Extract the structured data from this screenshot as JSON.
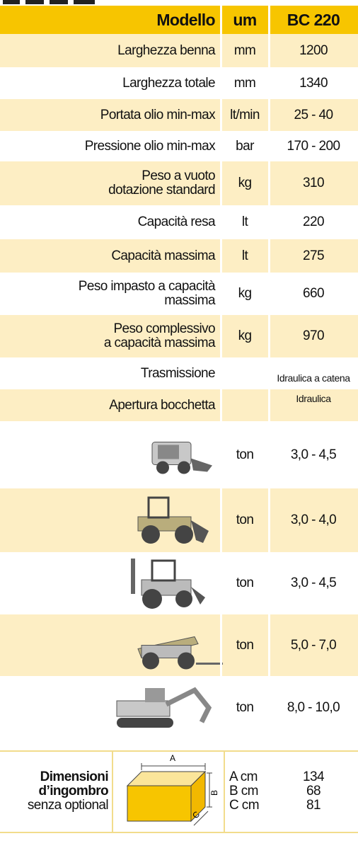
{
  "table": {
    "header": [
      "Modello",
      "um",
      "BC 220"
    ],
    "rows": [
      {
        "label": [
          "Larghezza benna"
        ],
        "unit": "mm",
        "value": "1200"
      },
      {
        "label": [
          "Larghezza totale"
        ],
        "unit": "mm",
        "value": "1340"
      },
      {
        "label": [
          "Portata olio min-max"
        ],
        "unit": "lt/min",
        "value": "25 - 40"
      },
      {
        "label": [
          "Pressione olio min-max"
        ],
        "unit": "bar",
        "value": "170 - 200"
      },
      {
        "label": [
          "Peso a vuoto",
          "dotazione standard"
        ],
        "unit": "kg",
        "value": "310"
      },
      {
        "label": [
          "Capacità resa"
        ],
        "unit": "lt",
        "value": "220"
      },
      {
        "label": [
          "Capacità massima"
        ],
        "unit": "lt",
        "value": "275"
      },
      {
        "label": [
          "Peso impasto a capacità",
          "massima"
        ],
        "unit": "kg",
        "value": "660"
      },
      {
        "label": [
          "Peso complessivo",
          "a capacità massima"
        ],
        "unit": "kg",
        "value": "970"
      },
      {
        "label": [
          "Trasmissione"
        ],
        "value": "Idraulica a catena"
      },
      {
        "label": [
          "Apertura bocchetta"
        ],
        "value": "Idraulica"
      }
    ],
    "machines": [
      {
        "unit": "ton",
        "value": "3,0 - 4,5"
      },
      {
        "unit": "ton",
        "value": "3,0 - 4,0"
      },
      {
        "unit": "ton",
        "value": "3,0 - 4,5"
      },
      {
        "unit": "ton",
        "value": "5,0 - 7,0"
      },
      {
        "unit": "ton",
        "value": "8,0 - 10,0"
      }
    ]
  },
  "dimensions": {
    "title": [
      "Dimensioni",
      "d’ingombro"
    ],
    "note": "senza optional",
    "diagram_labels": [
      "A",
      "B",
      "C"
    ],
    "units": [
      "A cm",
      "B cm",
      "C cm"
    ],
    "values": [
      "134",
      "68",
      "81"
    ]
  }
}
